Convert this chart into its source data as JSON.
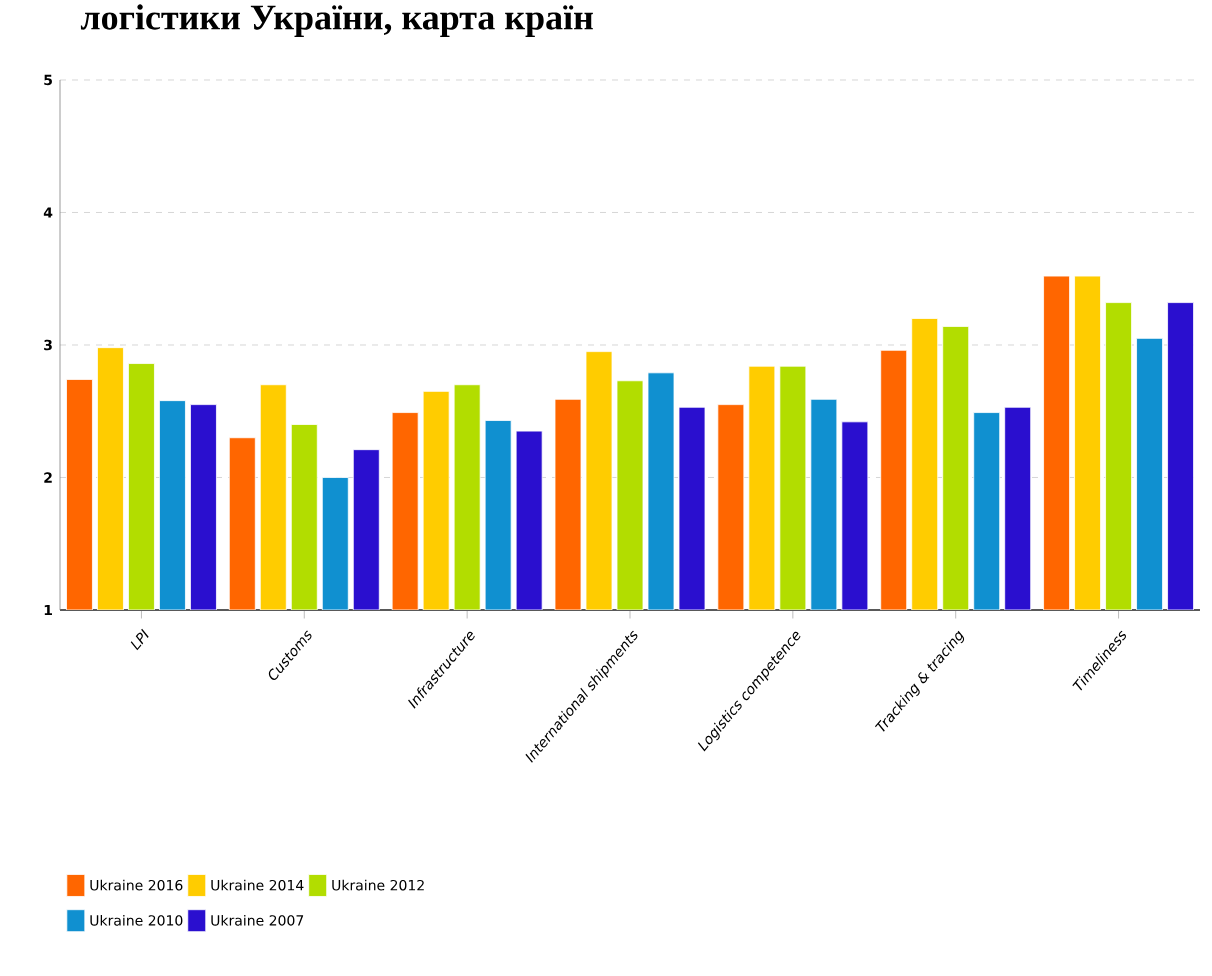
{
  "chart_data": {
    "type": "bar",
    "title": "логістики України, карта країн",
    "categories": [
      "LPI",
      "Customs",
      "Infrastructure",
      "International shipments",
      "Logistics competence",
      "Tracking & tracing",
      "Timeliness"
    ],
    "series": [
      {
        "name": "Ukraine 2016",
        "color": "#ff6600",
        "values": [
          2.74,
          2.3,
          2.49,
          2.59,
          2.55,
          2.96,
          3.52
        ]
      },
      {
        "name": "Ukraine 2014",
        "color": "#ffcc00",
        "values": [
          2.98,
          2.7,
          2.65,
          2.95,
          2.84,
          3.2,
          3.52
        ]
      },
      {
        "name": "Ukraine 2012",
        "color": "#b2dd00",
        "values": [
          2.86,
          2.4,
          2.7,
          2.73,
          2.84,
          3.14,
          3.32
        ]
      },
      {
        "name": "Ukraine 2010",
        "color": "#1090d0",
        "values": [
          2.58,
          2.0,
          2.43,
          2.79,
          2.59,
          2.49,
          3.05
        ]
      },
      {
        "name": "Ukraine 2007",
        "color": "#2a0fcf",
        "values": [
          2.55,
          2.21,
          2.35,
          2.53,
          2.42,
          2.53,
          3.32
        ]
      }
    ],
    "ylim": [
      1,
      5
    ],
    "yticks": [
      1,
      2,
      3,
      4,
      5
    ],
    "grid": "y",
    "legend": "bottom"
  }
}
